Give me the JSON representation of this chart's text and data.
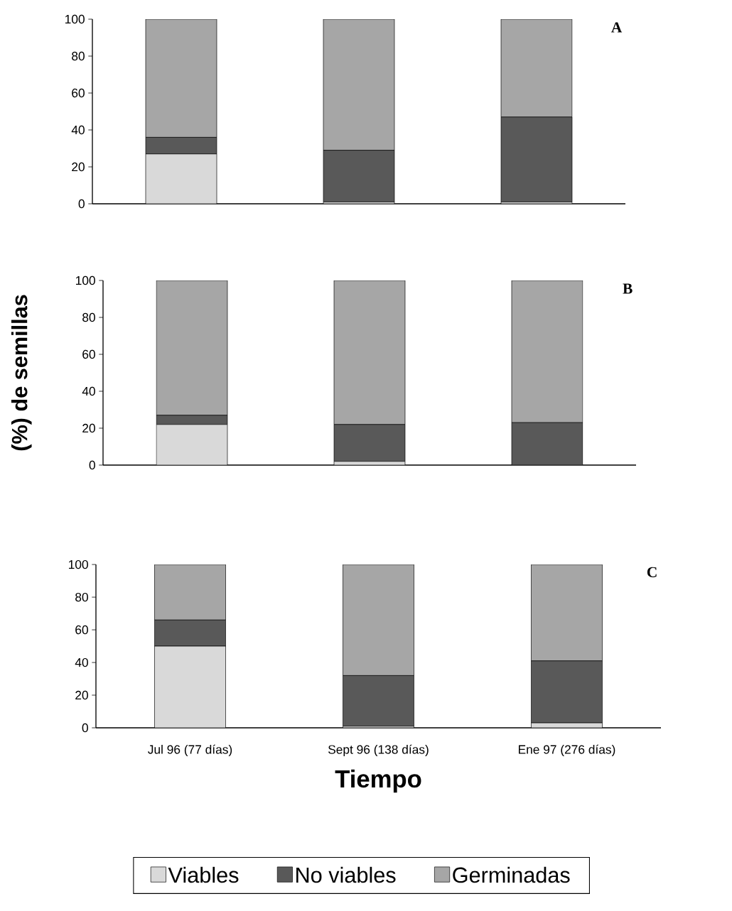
{
  "chart_data": [
    {
      "type": "bar",
      "title": "A",
      "stacked": true,
      "tick_labels": "y",
      "categories": [
        null,
        null,
        null
      ],
      "ylim": [
        0,
        100
      ],
      "yticks": [
        0,
        20,
        40,
        60,
        80,
        100
      ],
      "series": [
        {
          "color": "#d9d9d9",
          "values": [
            27,
            1,
            1
          ]
        },
        {
          "color": "#595959",
          "values": [
            9,
            28,
            46
          ]
        },
        {
          "color": "#a6a6a6",
          "values": [
            64,
            71,
            53
          ]
        }
      ]
    },
    {
      "type": "bar",
      "title": "B",
      "stacked": true,
      "tick_labels": "y",
      "ylabel": "(%) de semillas",
      "categories": [
        null,
        null,
        null
      ],
      "ylim": [
        0,
        100
      ],
      "yticks": [
        0,
        20,
        40,
        60,
        80,
        100
      ],
      "series": [
        {
          "color": "#d9d9d9",
          "values": [
            22,
            2,
            0
          ]
        },
        {
          "color": "#595959",
          "values": [
            5,
            20,
            23
          ]
        },
        {
          "color": "#a6a6a6",
          "values": [
            73,
            78,
            77
          ]
        }
      ]
    },
    {
      "type": "bar",
      "title": "C",
      "stacked": true,
      "xlabel": "Tiempo",
      "legend": "bottom",
      "categories": [
        "Jul 96 (77 días)",
        "Sept 96 (138 días)",
        "Ene 97 (276 días)"
      ],
      "ylim": [
        0,
        100
      ],
      "yticks": [
        0,
        20,
        40,
        60,
        80,
        100
      ],
      "series": [
        {
          "name": "Viables",
          "color": "#d9d9d9",
          "values": [
            50,
            1,
            3
          ]
        },
        {
          "name": "No viables",
          "color": "#595959",
          "values": [
            16,
            31,
            38
          ]
        },
        {
          "name": "Germinadas",
          "color": "#a6a6a6",
          "values": [
            34,
            68,
            59
          ]
        }
      ]
    }
  ]
}
